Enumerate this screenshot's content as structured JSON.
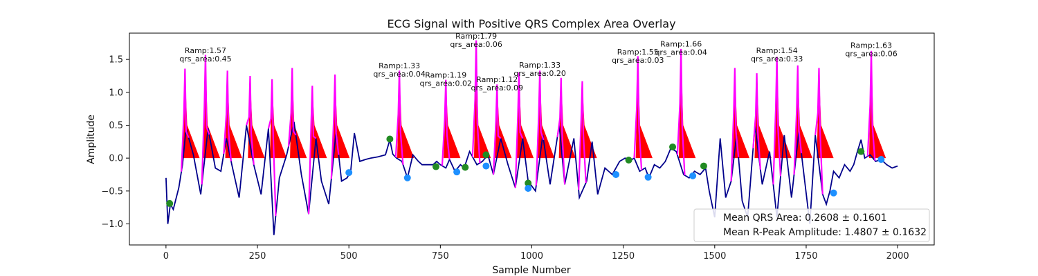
{
  "chart_data": {
    "type": "line",
    "title": "ECG Signal with Positive QRS Complex Area Overlay",
    "xlabel": "Sample Number",
    "ylabel": "Amplitude",
    "xlim": [
      -100,
      2100
    ],
    "ylim": [
      -1.32,
      1.9
    ],
    "xticks": [
      0,
      250,
      500,
      750,
      1000,
      1250,
      1500,
      1750,
      2000
    ],
    "xtick_labels": [
      "0",
      "250",
      "500",
      "750",
      "1000",
      "1250",
      "1500",
      "1750",
      "2000"
    ],
    "yticks": [
      -1.0,
      -0.5,
      0.0,
      0.5,
      1.0,
      1.5
    ],
    "ytick_labels": [
      "−1.0",
      "−0.5",
      "0.0",
      "0.5",
      "1.0",
      "1.5"
    ],
    "grid": false,
    "legend_position": "bottom-right",
    "legend": [
      "Mean QRS Area: 0.2608 ± 0.1601",
      "Mean R-Peak Amplitude: 1.4807 ± 0.1632"
    ],
    "colors": {
      "signal": "#00008b",
      "qrs_segment": "#ff00ff",
      "qrs_area_fill": "#ff0000",
      "q_marker": "#228b22",
      "s_marker": "#1e90ff"
    },
    "series": [
      {
        "role": "ecg-signal",
        "points": [
          [
            0,
            -0.3
          ],
          [
            5,
            -1.0
          ],
          [
            12,
            -0.7
          ],
          [
            20,
            -0.78
          ],
          [
            35,
            -0.45
          ],
          [
            45,
            -0.1
          ],
          [
            55,
            0.45
          ],
          [
            75,
            0.05
          ],
          [
            95,
            -0.55
          ],
          [
            115,
            0.45
          ],
          [
            135,
            -0.15
          ],
          [
            150,
            -0.2
          ],
          [
            165,
            0.3
          ],
          [
            180,
            -0.1
          ],
          [
            200,
            -0.6
          ],
          [
            220,
            0.5
          ],
          [
            240,
            -0.1
          ],
          [
            260,
            -0.55
          ],
          [
            280,
            0.45
          ],
          [
            295,
            -1.17
          ],
          [
            310,
            -0.3
          ],
          [
            330,
            0.05
          ],
          [
            350,
            0.55
          ],
          [
            370,
            -0.25
          ],
          [
            390,
            -0.85
          ],
          [
            410,
            0.3
          ],
          [
            425,
            -0.35
          ],
          [
            445,
            -0.7
          ],
          [
            465,
            0.4
          ],
          [
            480,
            -0.35
          ],
          [
            495,
            -0.3
          ],
          [
            505,
            -0.2
          ],
          [
            515,
            0.38
          ],
          [
            530,
            -0.05
          ],
          [
            545,
            -0.02
          ],
          [
            560,
            0.0
          ],
          [
            580,
            0.02
          ],
          [
            600,
            0.05
          ],
          [
            612,
            0.28
          ],
          [
            620,
            0.06
          ],
          [
            630,
            0.0
          ],
          [
            645,
            -0.05
          ],
          [
            660,
            -0.3
          ],
          [
            675,
            0.05
          ],
          [
            690,
            -0.05
          ],
          [
            700,
            -0.1
          ],
          [
            715,
            -0.1
          ],
          [
            730,
            -0.1
          ],
          [
            740,
            -0.05
          ],
          [
            750,
            -0.1
          ],
          [
            765,
            -0.15
          ],
          [
            775,
            -0.02
          ],
          [
            790,
            -0.2
          ],
          [
            805,
            -0.1
          ],
          [
            815,
            -0.15
          ],
          [
            830,
            0.1
          ],
          [
            850,
            -0.1
          ],
          [
            865,
            -0.05
          ],
          [
            880,
            0.05
          ],
          [
            895,
            -0.25
          ],
          [
            915,
            0.3
          ],
          [
            935,
            -0.1
          ],
          [
            955,
            -0.45
          ],
          [
            975,
            0.3
          ],
          [
            990,
            -0.35
          ],
          [
            1010,
            -0.5
          ],
          [
            1030,
            0.35
          ],
          [
            1050,
            -0.4
          ],
          [
            1075,
            0.5
          ],
          [
            1090,
            -0.4
          ],
          [
            1115,
            0.3
          ],
          [
            1130,
            -0.6
          ],
          [
            1150,
            -0.35
          ],
          [
            1165,
            0.25
          ],
          [
            1180,
            -0.55
          ],
          [
            1200,
            -0.15
          ],
          [
            1220,
            -0.25
          ],
          [
            1240,
            -0.05
          ],
          [
            1255,
            0.0
          ],
          [
            1265,
            -0.05
          ],
          [
            1280,
            0.0
          ],
          [
            1295,
            -0.2
          ],
          [
            1310,
            -0.15
          ],
          [
            1320,
            -0.3
          ],
          [
            1335,
            -0.1
          ],
          [
            1350,
            -0.15
          ],
          [
            1365,
            -0.05
          ],
          [
            1380,
            0.15
          ],
          [
            1395,
            0.1
          ],
          [
            1415,
            -0.25
          ],
          [
            1430,
            -0.3
          ],
          [
            1445,
            -0.2
          ],
          [
            1460,
            -0.25
          ],
          [
            1475,
            -0.15
          ],
          [
            1485,
            -0.5
          ],
          [
            1500,
            -0.9
          ],
          [
            1515,
            0.3
          ],
          [
            1530,
            -0.6
          ],
          [
            1545,
            -0.35
          ],
          [
            1560,
            0.35
          ],
          [
            1575,
            -0.65
          ],
          [
            1590,
            -0.9
          ],
          [
            1610,
            0.5
          ],
          [
            1630,
            -0.4
          ],
          [
            1650,
            0.1
          ],
          [
            1670,
            -0.9
          ],
          [
            1690,
            0.35
          ],
          [
            1710,
            -0.6
          ],
          [
            1730,
            0.4
          ],
          [
            1745,
            -0.3
          ],
          [
            1760,
            -1.0
          ],
          [
            1775,
            0.35
          ],
          [
            1795,
            -0.55
          ],
          [
            1805,
            -0.7
          ],
          [
            1815,
            -0.5
          ],
          [
            1825,
            -0.2
          ],
          [
            1840,
            -0.3
          ],
          [
            1855,
            -0.1
          ],
          [
            1870,
            -0.2
          ],
          [
            1880,
            -0.1
          ],
          [
            1890,
            0.1
          ],
          [
            1900,
            0.28
          ],
          [
            1910,
            0.0
          ],
          [
            1925,
            0.05
          ],
          [
            1940,
            -0.05
          ],
          [
            1955,
            -0.02
          ],
          [
            1970,
            -0.1
          ],
          [
            1985,
            -0.15
          ],
          [
            2000,
            -0.12
          ]
        ]
      }
    ],
    "r_peaks": [
      {
        "x": 52,
        "amplitude": 1.36
      },
      {
        "x": 108,
        "amplitude": 1.57
      },
      {
        "x": 168,
        "amplitude": 1.33
      },
      {
        "x": 230,
        "amplitude": 1.25
      },
      {
        "x": 290,
        "amplitude": 1.2
      },
      {
        "x": 345,
        "amplitude": 1.37
      },
      {
        "x": 400,
        "amplitude": 1.1
      },
      {
        "x": 462,
        "amplitude": 1.27
      },
      {
        "x": 638,
        "amplitude": 1.33
      },
      {
        "x": 765,
        "amplitude": 1.19
      },
      {
        "x": 848,
        "amplitude": 1.79
      },
      {
        "x": 905,
        "amplitude": 1.12
      },
      {
        "x": 965,
        "amplitude": 1.3
      },
      {
        "x": 1022,
        "amplitude": 1.33
      },
      {
        "x": 1080,
        "amplitude": 1.22
      },
      {
        "x": 1138,
        "amplitude": 1.17
      },
      {
        "x": 1290,
        "amplitude": 1.55
      },
      {
        "x": 1408,
        "amplitude": 1.66
      },
      {
        "x": 1555,
        "amplitude": 1.37
      },
      {
        "x": 1615,
        "amplitude": 1.29
      },
      {
        "x": 1670,
        "amplitude": 1.54
      },
      {
        "x": 1727,
        "amplitude": 1.41
      },
      {
        "x": 1785,
        "amplitude": 1.37
      },
      {
        "x": 1928,
        "amplitude": 1.63
      }
    ],
    "q_points": [
      [
        10,
        -0.69
      ],
      [
        612,
        0.29
      ],
      [
        738,
        -0.13
      ],
      [
        818,
        -0.14
      ],
      [
        875,
        0.05
      ],
      [
        990,
        -0.38
      ],
      [
        1265,
        -0.03
      ],
      [
        1385,
        0.17
      ],
      [
        1470,
        -0.12
      ],
      [
        1900,
        0.1
      ]
    ],
    "s_points": [
      [
        500,
        -0.22
      ],
      [
        660,
        -0.3
      ],
      [
        795,
        -0.21
      ],
      [
        875,
        -0.12
      ],
      [
        990,
        -0.46
      ],
      [
        1230,
        -0.25
      ],
      [
        1318,
        -0.29
      ],
      [
        1440,
        -0.27
      ],
      [
        1825,
        -0.53
      ],
      [
        1955,
        -0.02
      ]
    ],
    "annotations": [
      {
        "x": 108,
        "y": 1.5,
        "ramp": "Ramp:1.57",
        "area": "qrs_area:0.45"
      },
      {
        "x": 638,
        "y": 1.27,
        "ramp": "Ramp:1.33",
        "area": "qrs_area:0.04"
      },
      {
        "x": 765,
        "y": 1.13,
        "ramp": "Ramp:1.19",
        "area": "qrs_area:0.02"
      },
      {
        "x": 848,
        "y": 1.72,
        "ramp": "Ramp:1.79",
        "area": "qrs_area:0.06"
      },
      {
        "x": 905,
        "y": 1.06,
        "ramp": "Ramp:1.12",
        "area": "qrs_area:0.09"
      },
      {
        "x": 1022,
        "y": 1.28,
        "ramp": "Ramp:1.33",
        "area": "qrs_area:0.20"
      },
      {
        "x": 1290,
        "y": 1.48,
        "ramp": "Ramp:1.55",
        "area": "qrs_area:0.03"
      },
      {
        "x": 1408,
        "y": 1.6,
        "ramp": "Ramp:1.66",
        "area": "qrs_area:0.04"
      },
      {
        "x": 1670,
        "y": 1.5,
        "ramp": "Ramp:1.54",
        "area": "qrs_area:0.33"
      },
      {
        "x": 1928,
        "y": 1.58,
        "ramp": "Ramp:1.63",
        "area": "qrs_area:0.06"
      }
    ]
  }
}
